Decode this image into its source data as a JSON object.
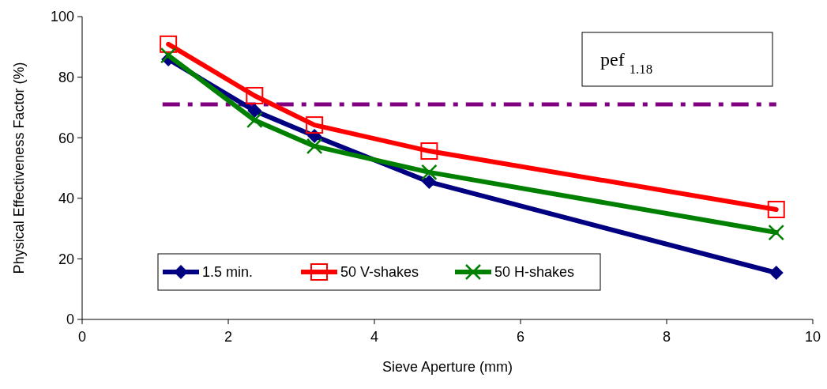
{
  "chart_data": {
    "type": "line",
    "xlabel": "Sieve Aperture (mm)",
    "ylabel": "Physical Effectiveness Factor (%)",
    "xlim": [
      0,
      10
    ],
    "xticks": [
      0,
      2,
      4,
      6,
      8,
      10
    ],
    "ylim": [
      0,
      100
    ],
    "yticks": [
      0,
      20,
      40,
      60,
      80,
      100
    ],
    "legend": "bottom left",
    "grid": false,
    "line_style": "solid",
    "annotations": [
      "pef $_{1.18}$"
    ],
    "ref_lines": [
      {
        "axis": "y",
        "value": 71,
        "color": "#800080",
        "line_style": "dashdot"
      }
    ],
    "series": [
      {
        "name": "1.5 min.",
        "color": "#000080",
        "marker": "diamond",
        "x": [
          1.18,
          2.36,
          3.18,
          4.75,
          9.5
        ],
        "values": [
          85.9,
          68.9,
          60.6,
          45.4,
          15.4
        ]
      },
      {
        "name": "50 V-shakes",
        "color": "#ff0000",
        "marker": "square",
        "x": [
          1.18,
          2.36,
          3.18,
          4.75,
          9.5
        ],
        "values": [
          90.9,
          73.9,
          64.2,
          55.6,
          36.3
        ]
      },
      {
        "name": "50 H-shakes",
        "color": "#008000",
        "marker": "cross",
        "x": [
          1.18,
          2.36,
          3.18,
          4.75,
          9.5
        ],
        "values": [
          87.2,
          65.8,
          57.2,
          48.6,
          28.7
        ]
      }
    ]
  }
}
